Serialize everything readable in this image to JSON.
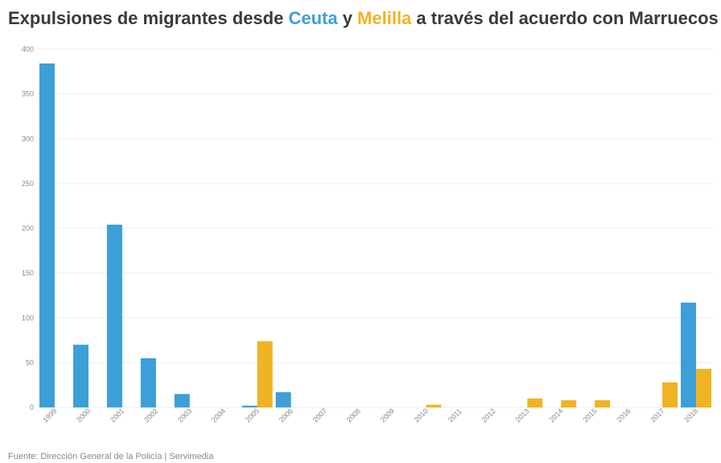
{
  "title": {
    "part1": "Expulsiones de migrantes desde ",
    "ceuta": "Ceuta",
    "part2": " y ",
    "melilla": "Melilla",
    "part3": " a través del acuerdo con Marruecos"
  },
  "source": "Fuente: Dirección General de la Policía | Servimedia",
  "colors": {
    "ceuta": "#3d9fd8",
    "melilla": "#f0b323",
    "grid": "#eeeeee",
    "text": "#3a3a3a"
  },
  "chart_data": {
    "type": "bar",
    "title": "Expulsiones de migrantes desde Ceuta y Melilla a través del acuerdo con Marruecos",
    "categories": [
      "1999",
      "2000",
      "2001",
      "2002",
      "2003",
      "2004",
      "2005",
      "2006",
      "2007",
      "2008",
      "2009",
      "2010",
      "2011",
      "2012",
      "2013",
      "2014",
      "2015",
      "2016",
      "2017",
      "2018"
    ],
    "series": [
      {
        "name": "Ceuta",
        "color": "#3d9fd8",
        "values": [
          384,
          70,
          204,
          55,
          15,
          0,
          2,
          17,
          0,
          0,
          0,
          0,
          0,
          0,
          0,
          0,
          0,
          0,
          0,
          117
        ]
      },
      {
        "name": "Melilla",
        "color": "#f0b323",
        "values": [
          0,
          0,
          0,
          0,
          0,
          0,
          74,
          0,
          0,
          0,
          0,
          3,
          0,
          0,
          10,
          8,
          8,
          0,
          28,
          43
        ]
      }
    ],
    "yticks": [
      0,
      50,
      100,
      150,
      200,
      250,
      300,
      350,
      400
    ],
    "ylim": [
      0,
      400
    ],
    "grid": true,
    "xlabel": "",
    "ylabel": ""
  }
}
